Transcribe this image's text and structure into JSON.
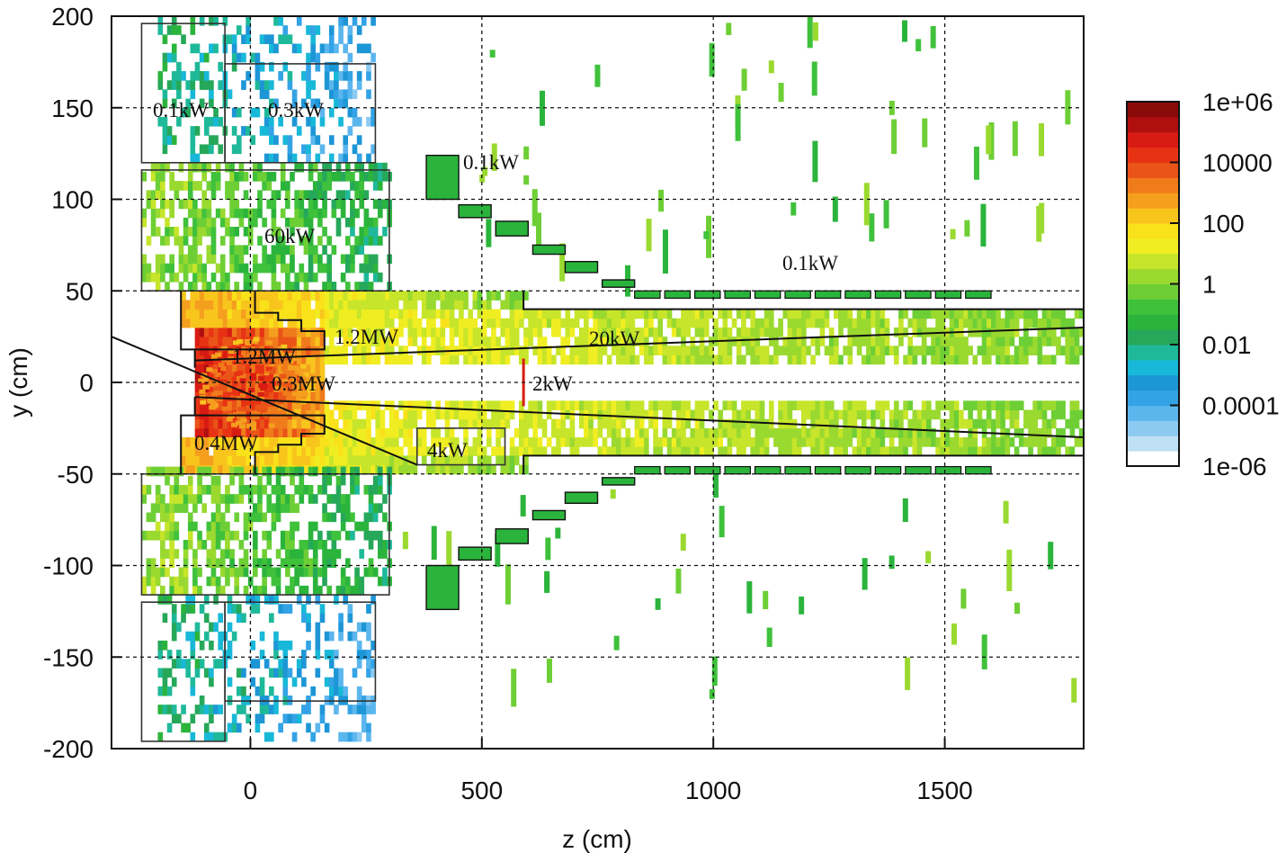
{
  "chart_data": {
    "type": "heatmap",
    "title": "",
    "xlabel": "z (cm)",
    "ylabel": "y (cm)",
    "xlim": [
      -300,
      1800
    ],
    "ylim": [
      -200,
      200
    ],
    "x_ticks": [
      "0",
      "500",
      "1000",
      "1500"
    ],
    "y_ticks": [
      "200",
      "150",
      "100",
      "50",
      "0",
      "-50",
      "-100",
      "-150",
      "-200"
    ],
    "grid": true,
    "colorbar": {
      "scale": "log",
      "min": "1e-06",
      "max": "1e+06",
      "tick_labels": [
        "1e+06",
        "10000",
        "100",
        "1",
        "0.01",
        "0.0001",
        "1e-06"
      ],
      "colors": [
        "#ffffff",
        "#bfe0f5",
        "#8ccaf2",
        "#5cb6ee",
        "#33a3e6",
        "#1d96d6",
        "#18b8d8",
        "#1fb99a",
        "#26a85a",
        "#2bb43c",
        "#3fc13b",
        "#6dcf35",
        "#9ad92f",
        "#c7e52a",
        "#f0ee22",
        "#f9e21a",
        "#f8c51d",
        "#f59f1e",
        "#f07b1b",
        "#ea5418",
        "#e73314",
        "#d81b13",
        "#b00f10",
        "#8a0a0a"
      ]
    },
    "regions": [
      {
        "label": "0.1kW",
        "z": [
          -235,
          -55
        ],
        "y": [
          120,
          196
        ],
        "value": "1e-03"
      },
      {
        "label": "0.3kW",
        "z": [
          -55,
          270
        ],
        "y": [
          120,
          174
        ],
        "value": "1e-02"
      },
      {
        "label": "60kW",
        "z": [
          -235,
          300
        ],
        "y": [
          50,
          116
        ],
        "value": "1e+00"
      },
      {
        "label": "1.2MW",
        "z": [
          -150,
          160
        ],
        "y": [
          18,
          50
        ],
        "value": "1e+03"
      },
      {
        "label": "1.2MW",
        "z": [
          -120,
          0
        ],
        "y": [
          8,
          20
        ],
        "value": "1e+05"
      },
      {
        "label": "0.3MW",
        "z": [
          -60,
          140
        ],
        "y": [
          -8,
          8
        ],
        "value": "1e+05"
      },
      {
        "label": "2kW",
        "z": [
          585,
          595
        ],
        "y": [
          -15,
          15
        ],
        "value": "1e+04"
      },
      {
        "label": "20kW",
        "z": [
          -120,
          1800
        ],
        "y": [
          10,
          50
        ],
        "value": "1e+01"
      },
      {
        "label": "0.4MW",
        "z": [
          -150,
          160
        ],
        "y": [
          -48,
          -18
        ],
        "value": "1e+03"
      },
      {
        "label": "4kW",
        "z": [
          360,
          550
        ],
        "y": [
          -45,
          -25
        ],
        "value": "1e+01"
      },
      {
        "label": "0.1kW",
        "z": [
          380,
          450
        ],
        "y": [
          100,
          124
        ],
        "value": "1e-01"
      },
      {
        "label": "0.1kW",
        "z": [
          760,
          1570
        ],
        "y": [
          44,
          50
        ],
        "value": "1e-01"
      },
      {
        "label": "",
        "z": [
          -235,
          300
        ],
        "y": [
          -116,
          -50
        ],
        "value": "1e+00"
      },
      {
        "label": "",
        "z": [
          -235,
          270
        ],
        "y": [
          -196,
          -120
        ],
        "value": "1e-03"
      },
      {
        "label": "",
        "z": [
          -120,
          1800
        ],
        "y": [
          -50,
          -10
        ],
        "value": "1e+01"
      }
    ],
    "annotations": [
      "0.1kW",
      "0.3kW",
      "0.1kW",
      "60kW",
      "0.1kW",
      "1.2MW",
      "20kW",
      "1.2MW",
      "0.3MW",
      "2kW",
      "0.4MW",
      "4kW"
    ]
  }
}
